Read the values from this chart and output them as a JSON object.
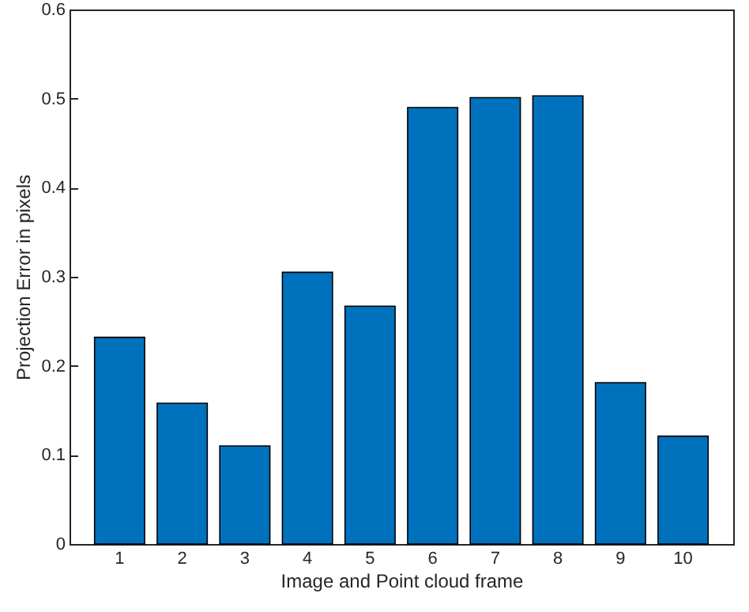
{
  "chart_data": {
    "type": "bar",
    "xlabel": "Image and Point cloud frame",
    "ylabel": "Projection Error in pixels",
    "categories": [
      "1",
      "2",
      "3",
      "4",
      "5",
      "6",
      "7",
      "8",
      "9",
      "10"
    ],
    "values": [
      0.232,
      0.158,
      0.11,
      0.305,
      0.267,
      0.49,
      0.501,
      0.503,
      0.181,
      0.121
    ],
    "color": "#0072bd",
    "ylim": [
      0,
      0.6
    ],
    "yticks": [
      0,
      0.1,
      0.2,
      0.3,
      0.4,
      0.5,
      0.6
    ],
    "grid": false
  }
}
